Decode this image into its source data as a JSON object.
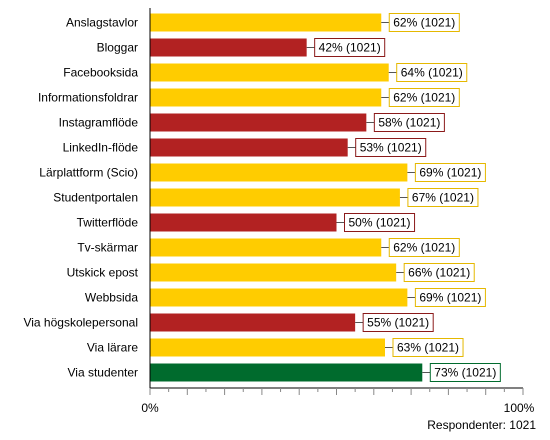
{
  "chart_data": {
    "type": "bar",
    "orientation": "horizontal",
    "categories": [
      "Anslagstavlor",
      "Bloggar",
      "Facebooksida",
      "Informationsfoldrar",
      "Instagramflöde",
      "LinkedIn-flöde",
      "Lärplattform (Scio)",
      "Studentportalen",
      "Twitterflöde",
      "Tv-skärmar",
      "Utskick epost",
      "Webbsida",
      "Via högskolepersonal",
      "Via lärare",
      "Via studenter"
    ],
    "values": [
      62,
      42,
      64,
      62,
      58,
      53,
      69,
      67,
      50,
      62,
      66,
      69,
      55,
      63,
      73
    ],
    "value_labels": [
      "62% (1021)",
      "42% (1021)",
      "64% (1021)",
      "62% (1021)",
      "58% (1021)",
      "53% (1021)",
      "69% (1021)",
      "67% (1021)",
      "50% (1021)",
      "62% (1021)",
      "66% (1021)",
      "69% (1021)",
      "55% (1021)",
      "63% (1021)",
      "73% (1021)"
    ],
    "bar_colors": [
      "#FFCC00",
      "#B22222",
      "#FFCC00",
      "#FFCC00",
      "#B22222",
      "#B22222",
      "#FFCC00",
      "#FFCC00",
      "#B22222",
      "#FFCC00",
      "#FFCC00",
      "#FFCC00",
      "#B22222",
      "#FFCC00",
      "#006B2D"
    ],
    "label_border_colors": [
      "#E5B800",
      "#8B1A1A",
      "#E5B800",
      "#E5B800",
      "#8B1A1A",
      "#8B1A1A",
      "#E5B800",
      "#E5B800",
      "#8B1A1A",
      "#E5B800",
      "#E5B800",
      "#E5B800",
      "#8B1A1A",
      "#E5B800",
      "#006B2D"
    ],
    "xlim": [
      0,
      100
    ],
    "x_tick_labels": [
      "0%",
      "100%"
    ],
    "grid": false,
    "legend": "none"
  },
  "footer": {
    "respondents": "Respondenter: 1021"
  }
}
